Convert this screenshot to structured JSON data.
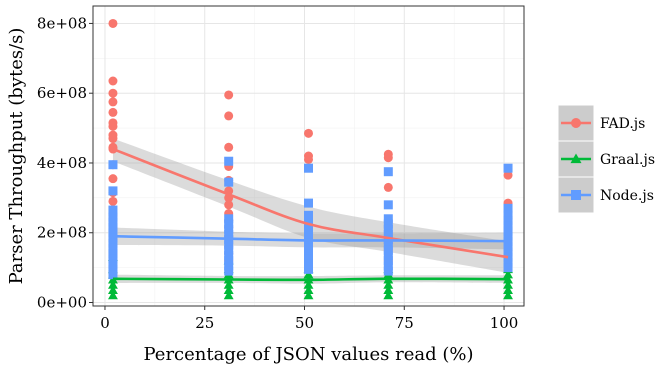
{
  "chart_data": {
    "type": "scatter",
    "title": "",
    "xlabel": "Percentage of JSON values read (%)",
    "ylabel": "Parser Throughput (bytes/s)",
    "xlim": [
      -3,
      105
    ],
    "ylim": [
      -10000000,
      850000000
    ],
    "x_ticks": [
      0,
      25,
      50,
      75,
      100
    ],
    "x_tick_labels": [
      "0",
      "25",
      "50",
      "75",
      "100"
    ],
    "y_ticks": [
      0,
      200000000,
      400000000,
      600000000,
      800000000
    ],
    "y_tick_labels": [
      "0e+00",
      "2e+08",
      "4e+08",
      "6e+08",
      "8e+08"
    ],
    "grid": true,
    "legend_position": "right",
    "series": [
      {
        "name": "FAD.js",
        "marker": "circle",
        "color": "#F8766D",
        "points": [
          [
            2,
            800000000
          ],
          [
            2,
            635000000
          ],
          [
            2,
            600000000
          ],
          [
            2,
            575000000
          ],
          [
            2,
            545000000
          ],
          [
            2,
            515000000
          ],
          [
            2,
            505000000
          ],
          [
            2,
            480000000
          ],
          [
            2,
            470000000
          ],
          [
            2,
            445000000
          ],
          [
            2,
            440000000
          ],
          [
            2,
            395000000
          ],
          [
            2,
            355000000
          ],
          [
            2,
            315000000
          ],
          [
            2,
            290000000
          ],
          [
            2,
            250000000
          ],
          [
            2,
            215000000
          ],
          [
            2,
            180000000
          ],
          [
            2,
            140000000
          ],
          [
            31,
            595000000
          ],
          [
            31,
            535000000
          ],
          [
            31,
            445000000
          ],
          [
            31,
            390000000
          ],
          [
            31,
            350000000
          ],
          [
            31,
            320000000
          ],
          [
            31,
            300000000
          ],
          [
            31,
            280000000
          ],
          [
            31,
            255000000
          ],
          [
            31,
            235000000
          ],
          [
            31,
            215000000
          ],
          [
            31,
            190000000
          ],
          [
            31,
            160000000
          ],
          [
            31,
            140000000
          ],
          [
            31,
            120000000
          ],
          [
            51,
            485000000
          ],
          [
            51,
            420000000
          ],
          [
            51,
            410000000
          ],
          [
            51,
            220000000
          ],
          [
            51,
            195000000
          ],
          [
            51,
            170000000
          ],
          [
            51,
            140000000
          ],
          [
            51,
            120000000
          ],
          [
            71,
            425000000
          ],
          [
            71,
            415000000
          ],
          [
            71,
            330000000
          ],
          [
            71,
            195000000
          ],
          [
            71,
            170000000
          ],
          [
            71,
            150000000
          ],
          [
            71,
            120000000
          ],
          [
            101,
            365000000
          ],
          [
            101,
            285000000
          ],
          [
            101,
            240000000
          ],
          [
            101,
            205000000
          ],
          [
            101,
            175000000
          ],
          [
            101,
            150000000
          ],
          [
            101,
            125000000
          ],
          [
            101,
            95000000
          ]
        ],
        "trend": [
          [
            2,
            440000000
          ],
          [
            31,
            310000000
          ],
          [
            51,
            225000000
          ],
          [
            71,
            185000000
          ],
          [
            101,
            130000000
          ]
        ],
        "band_upper": [
          [
            2,
            470000000
          ],
          [
            31,
            350000000
          ],
          [
            51,
            275000000
          ],
          [
            71,
            230000000
          ],
          [
            101,
            175000000
          ]
        ],
        "band_lower": [
          [
            2,
            405000000
          ],
          [
            31,
            275000000
          ],
          [
            51,
            185000000
          ],
          [
            71,
            145000000
          ],
          [
            101,
            85000000
          ]
        ]
      },
      {
        "name": "Graal.js",
        "marker": "triangle",
        "color": "#00BA38",
        "points": [
          [
            2,
            130000000
          ],
          [
            2,
            95000000
          ],
          [
            2,
            80000000
          ],
          [
            2,
            65000000
          ],
          [
            2,
            50000000
          ],
          [
            2,
            35000000
          ],
          [
            2,
            20000000
          ],
          [
            31,
            120000000
          ],
          [
            31,
            95000000
          ],
          [
            31,
            80000000
          ],
          [
            31,
            65000000
          ],
          [
            31,
            50000000
          ],
          [
            31,
            35000000
          ],
          [
            31,
            20000000
          ],
          [
            51,
            95000000
          ],
          [
            51,
            80000000
          ],
          [
            51,
            65000000
          ],
          [
            51,
            50000000
          ],
          [
            51,
            35000000
          ],
          [
            51,
            20000000
          ],
          [
            71,
            95000000
          ],
          [
            71,
            80000000
          ],
          [
            71,
            65000000
          ],
          [
            71,
            50000000
          ],
          [
            71,
            35000000
          ],
          [
            71,
            20000000
          ],
          [
            101,
            95000000
          ],
          [
            101,
            80000000
          ],
          [
            101,
            65000000
          ],
          [
            101,
            50000000
          ],
          [
            101,
            35000000
          ],
          [
            101,
            20000000
          ]
        ],
        "trend": [
          [
            2,
            68000000
          ],
          [
            31,
            66000000
          ],
          [
            51,
            65000000
          ],
          [
            71,
            68000000
          ],
          [
            101,
            67000000
          ]
        ],
        "band_upper": [
          [
            2,
            80000000
          ],
          [
            31,
            76000000
          ],
          [
            51,
            76000000
          ],
          [
            71,
            78000000
          ],
          [
            101,
            78000000
          ]
        ],
        "band_lower": [
          [
            2,
            56000000
          ],
          [
            31,
            56000000
          ],
          [
            51,
            54000000
          ],
          [
            71,
            58000000
          ],
          [
            101,
            56000000
          ]
        ]
      },
      {
        "name": "Node.js",
        "marker": "square",
        "color": "#619CFF",
        "points": [
          [
            2,
            395000000
          ],
          [
            2,
            320000000
          ],
          [
            2,
            265000000
          ],
          [
            2,
            245000000
          ],
          [
            2,
            230000000
          ],
          [
            2,
            215000000
          ],
          [
            2,
            200000000
          ],
          [
            2,
            185000000
          ],
          [
            2,
            170000000
          ],
          [
            2,
            155000000
          ],
          [
            2,
            140000000
          ],
          [
            2,
            125000000
          ],
          [
            2,
            110000000
          ],
          [
            2,
            95000000
          ],
          [
            2,
            80000000
          ],
          [
            31,
            405000000
          ],
          [
            31,
            345000000
          ],
          [
            31,
            240000000
          ],
          [
            31,
            225000000
          ],
          [
            31,
            210000000
          ],
          [
            31,
            195000000
          ],
          [
            31,
            180000000
          ],
          [
            31,
            165000000
          ],
          [
            31,
            150000000
          ],
          [
            31,
            135000000
          ],
          [
            31,
            120000000
          ],
          [
            31,
            105000000
          ],
          [
            31,
            90000000
          ],
          [
            51,
            385000000
          ],
          [
            51,
            285000000
          ],
          [
            51,
            250000000
          ],
          [
            51,
            230000000
          ],
          [
            51,
            215000000
          ],
          [
            51,
            200000000
          ],
          [
            51,
            185000000
          ],
          [
            51,
            170000000
          ],
          [
            51,
            155000000
          ],
          [
            51,
            140000000
          ],
          [
            51,
            125000000
          ],
          [
            51,
            110000000
          ],
          [
            51,
            95000000
          ],
          [
            71,
            375000000
          ],
          [
            71,
            280000000
          ],
          [
            71,
            240000000
          ],
          [
            71,
            225000000
          ],
          [
            71,
            210000000
          ],
          [
            71,
            195000000
          ],
          [
            71,
            180000000
          ],
          [
            71,
            165000000
          ],
          [
            71,
            150000000
          ],
          [
            71,
            135000000
          ],
          [
            71,
            120000000
          ],
          [
            71,
            105000000
          ],
          [
            71,
            90000000
          ],
          [
            101,
            385000000
          ],
          [
            101,
            270000000
          ],
          [
            101,
            250000000
          ],
          [
            101,
            235000000
          ],
          [
            101,
            220000000
          ],
          [
            101,
            205000000
          ],
          [
            101,
            190000000
          ],
          [
            101,
            175000000
          ],
          [
            101,
            160000000
          ],
          [
            101,
            145000000
          ],
          [
            101,
            130000000
          ],
          [
            101,
            115000000
          ],
          [
            101,
            100000000
          ]
        ],
        "trend": [
          [
            2,
            190000000
          ],
          [
            31,
            183000000
          ],
          [
            51,
            178000000
          ],
          [
            71,
            178000000
          ],
          [
            101,
            176000000
          ]
        ],
        "band_upper": [
          [
            2,
            215000000
          ],
          [
            31,
            203000000
          ],
          [
            51,
            198000000
          ],
          [
            71,
            198000000
          ],
          [
            101,
            200000000
          ]
        ],
        "band_lower": [
          [
            2,
            165000000
          ],
          [
            31,
            163000000
          ],
          [
            51,
            158000000
          ],
          [
            71,
            158000000
          ],
          [
            101,
            152000000
          ]
        ]
      }
    ]
  }
}
